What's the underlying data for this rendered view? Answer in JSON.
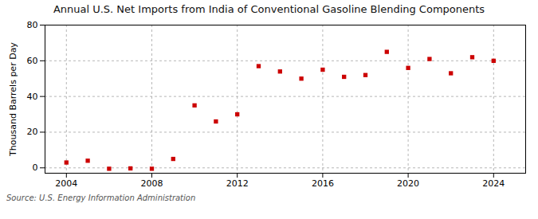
{
  "chart_data": {
    "type": "scatter",
    "title": "Annual U.S. Net Imports from India of Conventional Gasoline Blending Components",
    "ylabel": "Thousand Barrels per Day",
    "source": "Source: U.S. Energy Information Administration",
    "x": [
      2004,
      2005,
      2006,
      2007,
      2008,
      2009,
      2010,
      2011,
      2012,
      2013,
      2014,
      2015,
      2016,
      2017,
      2018,
      2019,
      2020,
      2021,
      2022,
      2023,
      2024
    ],
    "values": [
      3.0,
      4.0,
      -0.5,
      -0.3,
      -0.5,
      5.0,
      35.0,
      26.0,
      30.0,
      57.0,
      54.0,
      50.0,
      55.0,
      51.0,
      52.0,
      65.0,
      56.0,
      61.0,
      53.0,
      62.0,
      60.0
    ],
    "color": "#cc0000",
    "marker": "square",
    "xlim": [
      2003.0,
      2025.5
    ],
    "ylim": [
      -3,
      80
    ],
    "xticks": [
      2004,
      2008,
      2012,
      2016,
      2020,
      2024
    ],
    "yticks": [
      0,
      20,
      40,
      60,
      80
    ],
    "grid": true
  }
}
